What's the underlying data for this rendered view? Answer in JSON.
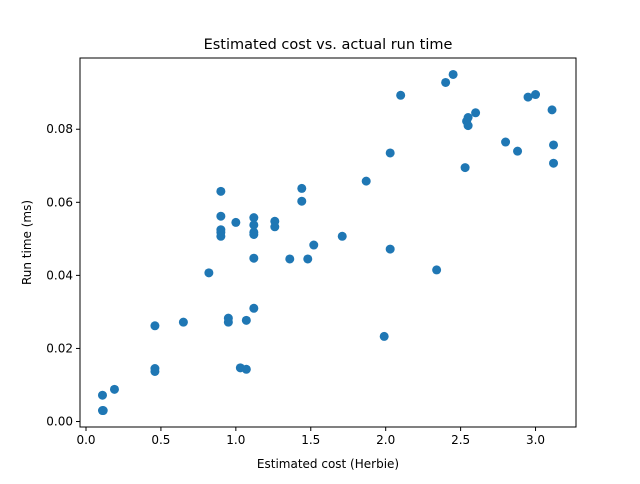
{
  "chart_data": {
    "type": "scatter",
    "title": "Estimated cost vs. actual run time",
    "xlabel": "Estimated cost (Herbie)",
    "ylabel": "Run time (ms)",
    "xlim": [
      -0.04,
      3.27
    ],
    "ylim": [
      -0.0015,
      0.0995
    ],
    "x_ticks": [
      0.0,
      0.5,
      1.0,
      1.5,
      2.0,
      2.5,
      3.0
    ],
    "x_tick_labels": [
      "0.0",
      "0.5",
      "1.0",
      "1.5",
      "2.0",
      "2.5",
      "3.0"
    ],
    "y_ticks": [
      0.0,
      0.02,
      0.04,
      0.06,
      0.08
    ],
    "y_tick_labels": [
      "0.00",
      "0.02",
      "0.04",
      "0.06",
      "0.08"
    ],
    "grid": false,
    "legend": "none",
    "colors": {
      "marker": "#1f77b4"
    },
    "points": [
      {
        "x": 0.11,
        "y": 0.003
      },
      {
        "x": 0.115,
        "y": 0.003
      },
      {
        "x": 0.11,
        "y": 0.0072
      },
      {
        "x": 0.19,
        "y": 0.0088
      },
      {
        "x": 0.46,
        "y": 0.0262
      },
      {
        "x": 0.46,
        "y": 0.0145
      },
      {
        "x": 0.46,
        "y": 0.0137
      },
      {
        "x": 0.65,
        "y": 0.0272
      },
      {
        "x": 0.82,
        "y": 0.0407
      },
      {
        "x": 0.9,
        "y": 0.063
      },
      {
        "x": 0.9,
        "y": 0.0562
      },
      {
        "x": 0.9,
        "y": 0.0525
      },
      {
        "x": 0.9,
        "y": 0.0518
      },
      {
        "x": 0.9,
        "y": 0.0507
      },
      {
        "x": 0.95,
        "y": 0.0283
      },
      {
        "x": 0.95,
        "y": 0.0272
      },
      {
        "x": 1.0,
        "y": 0.0545
      },
      {
        "x": 1.03,
        "y": 0.0147
      },
      {
        "x": 1.07,
        "y": 0.0143
      },
      {
        "x": 1.07,
        "y": 0.0277
      },
      {
        "x": 1.12,
        "y": 0.0558
      },
      {
        "x": 1.12,
        "y": 0.0538
      },
      {
        "x": 1.12,
        "y": 0.0518
      },
      {
        "x": 1.12,
        "y": 0.0512
      },
      {
        "x": 1.12,
        "y": 0.0447
      },
      {
        "x": 1.12,
        "y": 0.031
      },
      {
        "x": 1.26,
        "y": 0.0548
      },
      {
        "x": 1.26,
        "y": 0.0533
      },
      {
        "x": 1.36,
        "y": 0.0445
      },
      {
        "x": 1.44,
        "y": 0.0638
      },
      {
        "x": 1.44,
        "y": 0.0603
      },
      {
        "x": 1.48,
        "y": 0.0445
      },
      {
        "x": 1.52,
        "y": 0.0483
      },
      {
        "x": 1.71,
        "y": 0.0507
      },
      {
        "x": 1.87,
        "y": 0.0658
      },
      {
        "x": 1.99,
        "y": 0.0233
      },
      {
        "x": 2.03,
        "y": 0.0735
      },
      {
        "x": 2.03,
        "y": 0.0472
      },
      {
        "x": 2.1,
        "y": 0.0893
      },
      {
        "x": 2.34,
        "y": 0.0415
      },
      {
        "x": 2.4,
        "y": 0.0928
      },
      {
        "x": 2.45,
        "y": 0.095
      },
      {
        "x": 2.53,
        "y": 0.0695
      },
      {
        "x": 2.54,
        "y": 0.0822
      },
      {
        "x": 2.55,
        "y": 0.0832
      },
      {
        "x": 2.55,
        "y": 0.081
      },
      {
        "x": 2.6,
        "y": 0.0845
      },
      {
        "x": 2.8,
        "y": 0.0765
      },
      {
        "x": 2.88,
        "y": 0.074
      },
      {
        "x": 2.95,
        "y": 0.0888
      },
      {
        "x": 3.0,
        "y": 0.0895
      },
      {
        "x": 3.11,
        "y": 0.0853
      },
      {
        "x": 3.12,
        "y": 0.0757
      },
      {
        "x": 3.12,
        "y": 0.0707
      }
    ]
  }
}
